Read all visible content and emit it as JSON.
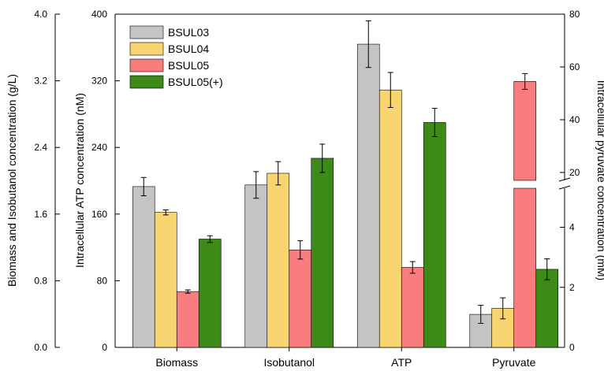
{
  "chart_data": {
    "type": "bar",
    "categories": [
      "Biomass",
      "Isobutanol",
      "ATP",
      "Pyruvate"
    ],
    "series": [
      {
        "name": "BSUL03",
        "color": "#c4c4c4",
        "values": [
          1.93,
          1.95,
          364,
          1.1
        ],
        "errors": [
          0.11,
          0.16,
          28,
          0.3
        ]
      },
      {
        "name": "BSUL04",
        "color": "#f9d571",
        "values": [
          1.62,
          2.09,
          309,
          1.3
        ],
        "errors": [
          0.03,
          0.14,
          21,
          0.35
        ]
      },
      {
        "name": "BSUL05",
        "color": "#f97d7e",
        "values": [
          0.67,
          1.17,
          96,
          54.5
        ],
        "errors": [
          0.02,
          0.11,
          7,
          3
        ]
      },
      {
        "name": "BSUL05(+)",
        "color": "#3d8a18",
        "values": [
          1.3,
          2.27,
          270,
          2.6
        ],
        "errors": [
          0.04,
          0.17,
          17,
          0.35
        ]
      }
    ],
    "value_axes": [
      "left",
      "left",
      "middle",
      "right"
    ],
    "left_axis": {
      "label": "Biomass and Isobutanol concentration (g/L)",
      "ticks": [
        "0.0",
        "0.8",
        "1.6",
        "2.4",
        "3.2",
        "4.0"
      ],
      "ylim": [
        0,
        4.0
      ]
    },
    "middle_axis": {
      "label": "Intracellular ATP concentration (nM)",
      "ticks": [
        "0",
        "80",
        "160",
        "240",
        "320",
        "400"
      ],
      "ylim": [
        0,
        400
      ]
    },
    "right_axis": {
      "label": "Intracellular pyruvate concentration (mM)",
      "ticks_lower": [
        "0",
        "2",
        "4"
      ],
      "ticks_upper": [
        "20",
        "40",
        "60",
        "80"
      ],
      "ylim_lower": [
        0,
        5.3
      ],
      "ylim_upper": [
        17,
        80
      ],
      "broken": true
    },
    "legend_position": "top-left",
    "grid": false
  }
}
